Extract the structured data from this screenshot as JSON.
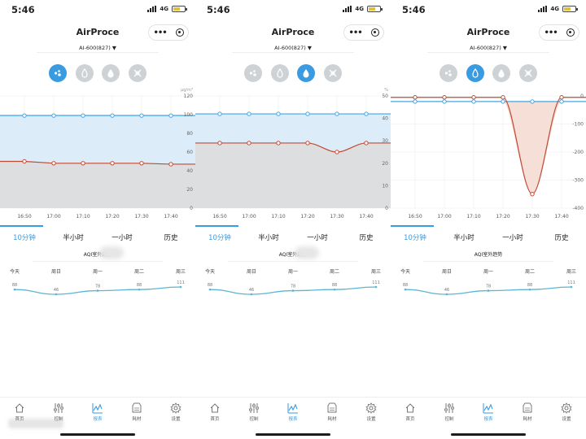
{
  "colors": {
    "accent": "#3a9be0",
    "indoor_line": "#c24a33",
    "outdoor_line": "#4aa3de",
    "outdoor_fill": "#d6eaf8",
    "indoor_fill": "#dcdcdc",
    "indoor_fill_deviation": "#f4ddd4",
    "trend_line": "#5ab6d2"
  },
  "panels": [
    {
      "status": {
        "time": "5:46",
        "network": "4G"
      },
      "header": {
        "title": "AirProce"
      },
      "device": {
        "label": "AI-600(827) ▼"
      },
      "modes": {
        "items": [
          "pm25",
          "formaldehyde",
          "humidity",
          "temperature"
        ],
        "active": 0
      },
      "chart_data": {
        "type": "line",
        "title": "",
        "xlabel": "",
        "ylabel": "μg/m³",
        "x": [
          "16:50",
          "17:00",
          "17:10",
          "17:20",
          "17:30",
          "17:40"
        ],
        "ylim": [
          0,
          120
        ],
        "yticks": [
          0,
          20,
          40,
          60,
          80,
          100,
          120
        ],
        "series": [
          {
            "name": "",
            "role": "outdoor",
            "values": [
              99,
              99,
              99,
              99,
              99,
              99
            ]
          },
          {
            "name": "",
            "role": "indoor",
            "values": [
              50,
              48,
              48,
              48,
              48,
              47
            ]
          }
        ],
        "fills": [
          "outdoor",
          "indoor"
        ]
      },
      "tabs": {
        "items": [
          "10分钟",
          "半小时",
          "一小时",
          "历史"
        ],
        "active": 0
      },
      "aqi": {
        "title": "AQI室外趋势",
        "days": [
          "今天",
          "周日",
          "周一",
          "周二",
          "周三"
        ],
        "values": [
          88,
          46,
          78,
          88,
          111
        ]
      },
      "nav": {
        "items": [
          "首页",
          "控制",
          "报表",
          "耗材",
          "设置"
        ],
        "active": 2
      }
    },
    {
      "status": {
        "time": "5:46",
        "network": "4G"
      },
      "header": {
        "title": "AirProce"
      },
      "device": {
        "label": "AI-600(827) ▼"
      },
      "modes": {
        "items": [
          "pm25",
          "formaldehyde",
          "humidity",
          "temperature"
        ],
        "active": 2
      },
      "chart_data": {
        "type": "line",
        "title": "",
        "xlabel": "",
        "ylabel": "%",
        "x": [
          "16:50",
          "17:00",
          "17:10",
          "17:20",
          "17:30",
          "17:40"
        ],
        "ylim": [
          0,
          50
        ],
        "yticks": [
          0,
          10,
          20,
          30,
          40,
          50
        ],
        "series": [
          {
            "name": "",
            "role": "outdoor",
            "values": [
              42,
              42,
              42,
              42,
              42,
              42
            ]
          },
          {
            "name": "",
            "role": "indoor",
            "values": [
              29,
              29,
              29,
              29,
              25,
              29
            ]
          }
        ],
        "fills": [
          "outdoor",
          "indoor"
        ]
      },
      "tabs": {
        "items": [
          "10分钟",
          "半小时",
          "一小时",
          "历史"
        ],
        "active": 0
      },
      "aqi": {
        "title": "AQI室外趋势",
        "days": [
          "今天",
          "周日",
          "周一",
          "周二",
          "周三"
        ],
        "values": [
          88,
          46,
          78,
          88,
          111
        ]
      },
      "nav": {
        "items": [
          "首页",
          "控制",
          "报表",
          "耗材",
          "设置"
        ],
        "active": 2
      }
    },
    {
      "status": {
        "time": "5:46",
        "network": "4G"
      },
      "header": {
        "title": "AirProce"
      },
      "device": {
        "label": "AI-600(827) ▼"
      },
      "modes": {
        "items": [
          "pm25",
          "formaldehyde",
          "humidity",
          "temperature"
        ],
        "active": 1
      },
      "chart_data": {
        "type": "line",
        "title": "",
        "xlabel": "",
        "ylabel": "",
        "x": [
          "16:50",
          "17:00",
          "17:10",
          "17:20",
          "17:30",
          "17:40"
        ],
        "ylim": [
          -400,
          0
        ],
        "yticks": [
          0,
          -100,
          -200,
          -300,
          -400
        ],
        "series": [
          {
            "name": "",
            "role": "outdoor",
            "values": [
              -20,
              -20,
              -20,
              -20,
              -20,
              -20
            ]
          },
          {
            "name": "",
            "role": "indoor",
            "values": [
              -5,
              -5,
              -5,
              -5,
              -350,
              -5
            ]
          }
        ],
        "fills": [
          "deviation"
        ]
      },
      "tabs": {
        "items": [
          "10分钟",
          "半小时",
          "一小时",
          "历史"
        ],
        "active": 0
      },
      "aqi": {
        "title": "AQI室外趋势",
        "days": [
          "今天",
          "周日",
          "周一",
          "周二",
          "周三"
        ],
        "values": [
          88,
          46,
          78,
          88,
          111
        ]
      },
      "nav": {
        "items": [
          "首页",
          "控制",
          "报表",
          "耗材",
          "设置"
        ],
        "active": 2
      }
    }
  ]
}
